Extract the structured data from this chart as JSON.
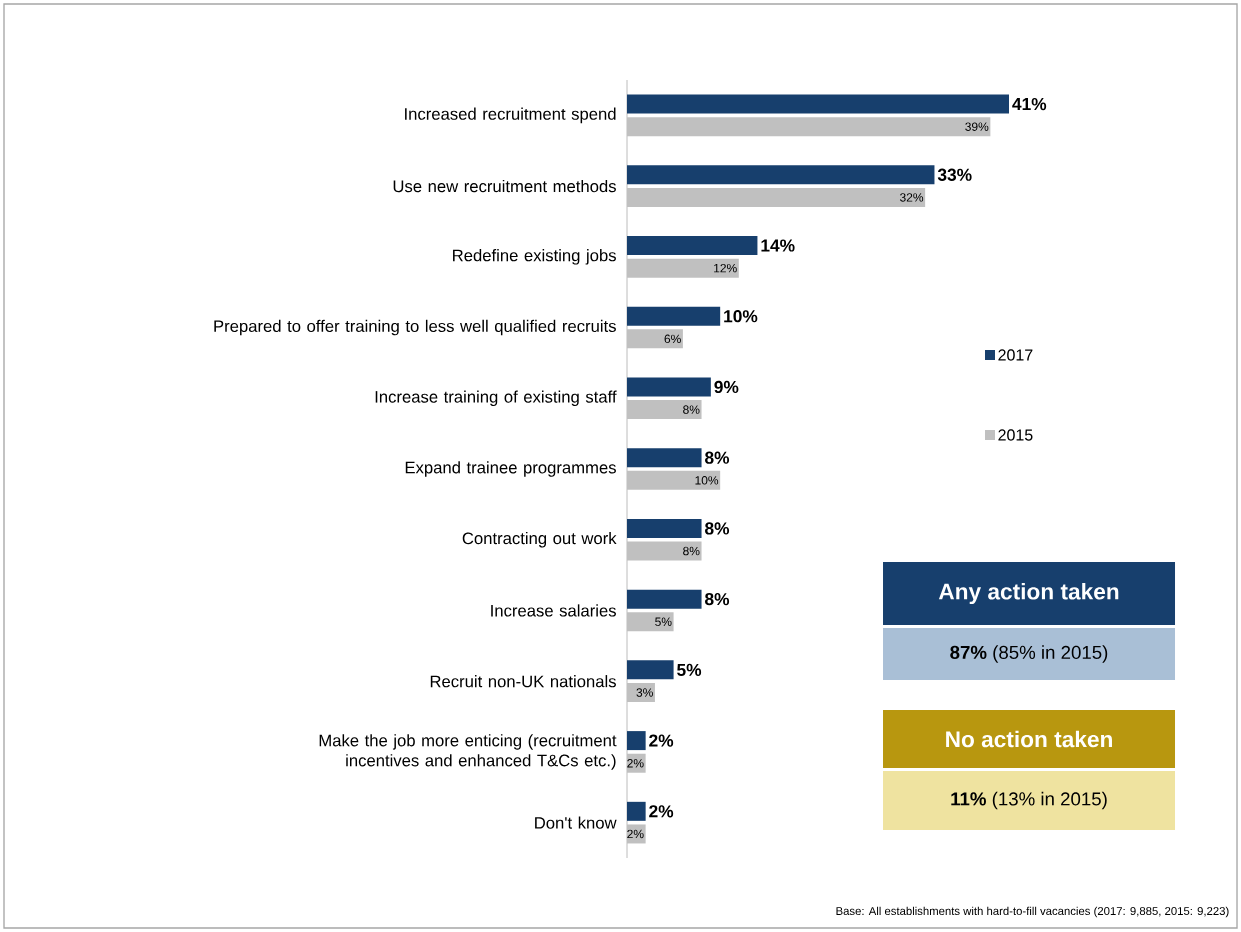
{
  "chart_data": {
    "type": "bar",
    "orientation": "horizontal",
    "legend": "right",
    "categories": [
      "Increased recruitment spend",
      "Use new recruitment methods",
      "Redefine existing jobs",
      "Prepared to offer training to less well qualified recruits",
      "Increase training of existing staff",
      "Expand trainee programmes",
      "Contracting out work",
      "Increase salaries",
      "Recruit non-UK nationals",
      "Make the job more enticing (recruitment incentives and enhanced T&Cs etc.)",
      "Don't know"
    ],
    "series": [
      {
        "name": "2017",
        "color": "#173f6d",
        "values": [
          41,
          33,
          14,
          10,
          9,
          8,
          8,
          8,
          5,
          2,
          2
        ],
        "value_labels": [
          "41%",
          "33%",
          "14%",
          "10%",
          "9%",
          "8%",
          "8%",
          "8%",
          "5%",
          "2%",
          "2%"
        ]
      },
      {
        "name": "2015",
        "color": "#c0c0c0",
        "values": [
          39,
          32,
          12,
          6,
          8,
          10,
          8,
          5,
          3,
          2,
          2
        ],
        "value_labels": [
          "39%",
          "32%",
          "12%",
          "6%",
          "8%",
          "10%",
          "8%",
          "5%",
          "3%",
          "2%",
          "2%"
        ]
      }
    ],
    "annotations": [
      "Any action taken",
      "**87%** (85% in 2015)",
      "No action taken",
      "**11%** (13% in 2015)",
      "Base: All establishments with hard-to-fill vacancies (2017: 9,885, 2015: 9,223)"
    ]
  }
}
